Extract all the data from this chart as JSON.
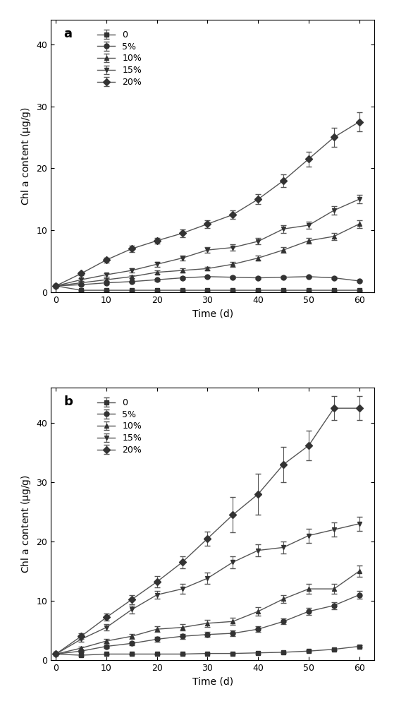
{
  "x": [
    0,
    5,
    10,
    15,
    20,
    25,
    30,
    35,
    40,
    45,
    50,
    55,
    60
  ],
  "panel_a": {
    "label": "a",
    "series": {
      "0": {
        "y": [
          1.0,
          0.3,
          0.3,
          0.3,
          0.3,
          0.3,
          0.3,
          0.3,
          0.3,
          0.3,
          0.3,
          0.3,
          0.3
        ],
        "yerr": [
          0.0,
          0.05,
          0.05,
          0.05,
          0.05,
          0.05,
          0.05,
          0.05,
          0.05,
          0.05,
          0.05,
          0.05,
          0.05
        ],
        "marker": "s",
        "label": "0"
      },
      "5": {
        "y": [
          1.0,
          1.2,
          1.5,
          1.7,
          2.0,
          2.3,
          2.5,
          2.4,
          2.3,
          2.4,
          2.5,
          2.3,
          1.8
        ],
        "yerr": [
          0.0,
          0.1,
          0.15,
          0.15,
          0.15,
          0.15,
          0.15,
          0.15,
          0.15,
          0.15,
          0.15,
          0.15,
          0.15
        ],
        "marker": "o",
        "label": "5%"
      },
      "10": {
        "y": [
          1.0,
          1.5,
          2.0,
          2.5,
          3.2,
          3.5,
          3.8,
          4.5,
          5.5,
          6.8,
          8.3,
          9.0,
          11.0
        ],
        "yerr": [
          0.0,
          0.2,
          0.2,
          0.2,
          0.3,
          0.3,
          0.3,
          0.4,
          0.4,
          0.5,
          0.5,
          0.6,
          0.6
        ],
        "marker": "^",
        "label": "10%"
      },
      "15": {
        "y": [
          1.0,
          2.0,
          2.8,
          3.5,
          4.5,
          5.5,
          6.8,
          7.2,
          8.2,
          10.2,
          10.8,
          13.2,
          15.0
        ],
        "yerr": [
          0.0,
          0.2,
          0.3,
          0.3,
          0.4,
          0.4,
          0.5,
          0.5,
          0.5,
          0.6,
          0.6,
          0.7,
          0.7
        ],
        "marker": "v",
        "label": "15%"
      },
      "20": {
        "y": [
          1.0,
          3.0,
          5.2,
          7.0,
          8.3,
          9.5,
          11.0,
          12.5,
          15.0,
          18.0,
          21.5,
          25.0,
          27.5
        ],
        "yerr": [
          0.0,
          0.3,
          0.4,
          0.5,
          0.5,
          0.6,
          0.6,
          0.7,
          0.8,
          1.0,
          1.2,
          1.5,
          1.5
        ],
        "marker": "D",
        "label": "20%"
      }
    },
    "ylim": [
      0,
      44
    ],
    "yticks": [
      0,
      10,
      20,
      30,
      40
    ],
    "xlabel": "Time (d)"
  },
  "panel_b": {
    "label": "b",
    "series": {
      "0": {
        "y": [
          1.0,
          0.8,
          1.0,
          1.0,
          1.0,
          1.0,
          1.1,
          1.1,
          1.2,
          1.3,
          1.5,
          1.8,
          2.3
        ],
        "yerr": [
          0.0,
          0.1,
          0.1,
          0.1,
          0.1,
          0.1,
          0.1,
          0.1,
          0.1,
          0.1,
          0.1,
          0.1,
          0.15
        ],
        "marker": "s",
        "label": "0"
      },
      "5": {
        "y": [
          1.0,
          1.5,
          2.3,
          2.8,
          3.5,
          4.0,
          4.3,
          4.5,
          5.2,
          6.5,
          8.2,
          9.2,
          11.0
        ],
        "yerr": [
          0.0,
          0.2,
          0.3,
          0.3,
          0.4,
          0.4,
          0.4,
          0.5,
          0.5,
          0.5,
          0.6,
          0.6,
          0.7
        ],
        "marker": "o",
        "label": "5%"
      },
      "10": {
        "y": [
          1.0,
          2.0,
          3.2,
          4.0,
          5.2,
          5.5,
          6.2,
          6.5,
          8.2,
          10.3,
          12.0,
          12.0,
          15.0
        ],
        "yerr": [
          0.0,
          0.3,
          0.4,
          0.4,
          0.5,
          0.5,
          0.6,
          0.6,
          0.7,
          0.7,
          0.8,
          0.8,
          1.0
        ],
        "marker": "^",
        "label": "10%"
      },
      "15": {
        "y": [
          1.0,
          3.5,
          5.5,
          8.5,
          11.0,
          12.0,
          13.8,
          16.5,
          18.5,
          19.0,
          21.0,
          22.0,
          23.0
        ],
        "yerr": [
          0.0,
          0.4,
          0.5,
          0.6,
          0.7,
          0.8,
          0.9,
          1.0,
          1.0,
          1.0,
          1.2,
          1.2,
          1.2
        ],
        "marker": "v",
        "label": "15%"
      },
      "20": {
        "y": [
          1.0,
          4.0,
          7.2,
          10.2,
          13.2,
          16.5,
          20.5,
          24.5,
          28.0,
          33.0,
          36.2,
          42.5,
          42.5
        ],
        "yerr": [
          0.0,
          0.5,
          0.6,
          0.8,
          0.9,
          1.0,
          1.2,
          3.0,
          3.5,
          3.0,
          2.5,
          2.0,
          2.0
        ],
        "marker": "D",
        "label": "20%"
      }
    },
    "ylim": [
      0,
      46
    ],
    "yticks": [
      0,
      10,
      20,
      30,
      40
    ],
    "xlabel": "Time (d)"
  },
  "line_color": "#555555",
  "marker_color": "#333333",
  "marker_size": 5,
  "capsize": 3,
  "elinewidth": 0.8,
  "linewidth": 1.0,
  "legend_fontsize": 9,
  "axis_fontsize": 10,
  "tick_fontsize": 9,
  "label_fontsize": 13,
  "series_keys": [
    "0",
    "5",
    "10",
    "15",
    "20"
  ]
}
